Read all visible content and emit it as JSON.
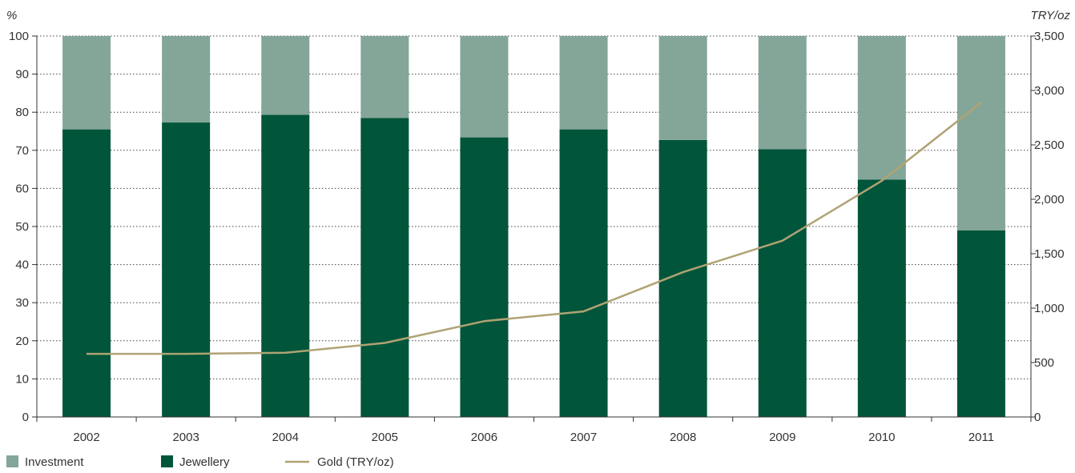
{
  "chart_data": {
    "type": "bar",
    "stacked": true,
    "categories": [
      "2002",
      "2003",
      "2004",
      "2005",
      "2006",
      "2007",
      "2008",
      "2009",
      "2010",
      "2011"
    ],
    "series": [
      {
        "name": "Jewellery",
        "axis": "left",
        "color": "#00553a",
        "values": [
          75.5,
          77.3,
          79.3,
          78.5,
          73.4,
          75.5,
          72.7,
          70.3,
          62.3,
          49.0
        ]
      },
      {
        "name": "Investment",
        "axis": "left",
        "color": "#83a698",
        "values": [
          24.5,
          22.7,
          20.7,
          21.5,
          26.6,
          24.5,
          27.3,
          29.7,
          37.7,
          51.0
        ]
      },
      {
        "name": "Gold (TRY/oz)",
        "type": "line",
        "axis": "right",
        "color": "#b0a374",
        "values": [
          580,
          580,
          590,
          680,
          880,
          970,
          1330,
          1620,
          2170,
          2890
        ]
      }
    ],
    "y_left": {
      "unit_label": "%",
      "min": 0,
      "max": 100,
      "ticks": [
        0,
        10,
        20,
        30,
        40,
        50,
        60,
        70,
        80,
        90,
        100
      ]
    },
    "y_right": {
      "unit_label": "TRY/oz",
      "min": 0,
      "max": 3500,
      "ticks": [
        0,
        500,
        1000,
        1500,
        2000,
        2500,
        3000,
        3500
      ],
      "tick_labels": [
        "0",
        "500",
        "1,000",
        "1,500",
        "2,000",
        "2,500",
        "3,000",
        "3,500"
      ]
    },
    "legend": {
      "placement": "bottom-left",
      "items": [
        {
          "label": "Investment",
          "kind": "square",
          "color": "#83a698"
        },
        {
          "label": "Jewellery",
          "kind": "square",
          "color": "#00553a"
        },
        {
          "label": "Gold (TRY/oz)",
          "kind": "line",
          "color": "#b0a374"
        }
      ]
    },
    "grid": {
      "horizontal": true,
      "style": "dotted"
    }
  }
}
